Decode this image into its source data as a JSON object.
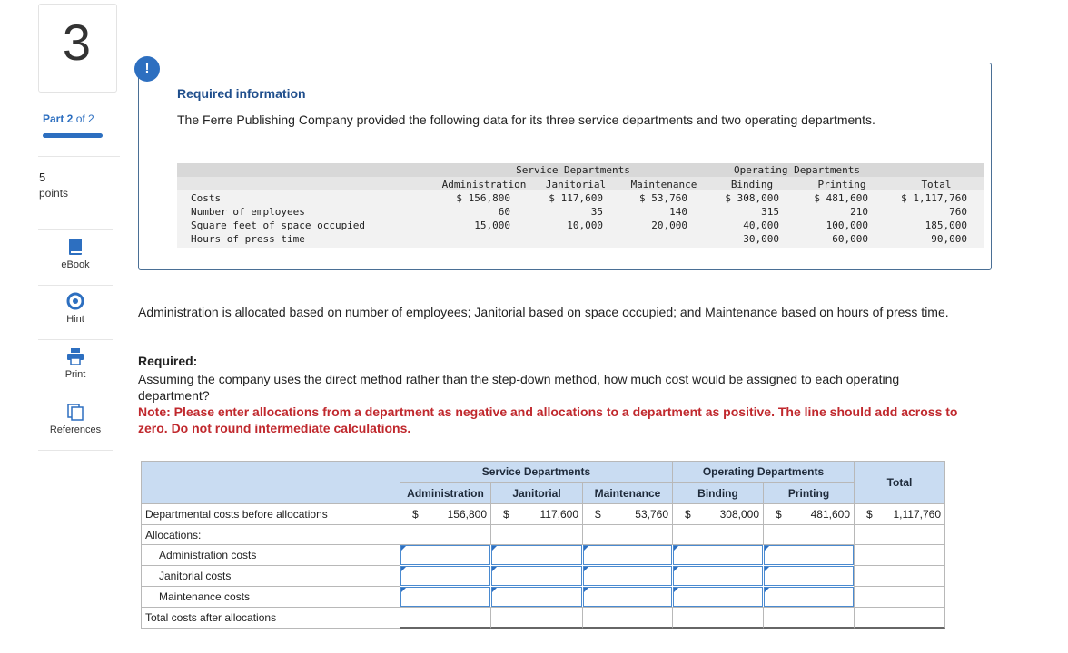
{
  "sidebar": {
    "question_number": "3",
    "part_label": "Part 2",
    "part_of": "of 2",
    "points_value": "5",
    "points_label": "points",
    "tools": [
      "eBook",
      "Hint",
      "Print",
      "References"
    ]
  },
  "info": {
    "badge": "!",
    "title": "Required information",
    "text": "The Ferre Publishing Company provided the following data for its three service departments and two operating departments.",
    "table": {
      "group_headers": [
        "Service Departments",
        "Operating Departments"
      ],
      "columns": [
        "Administration",
        "Janitorial",
        "Maintenance",
        "Binding",
        "Printing",
        "Total"
      ],
      "rows": [
        {
          "label": "Costs",
          "cells": [
            "$ 156,800",
            "$ 117,600",
            "$ 53,760",
            "$ 308,000",
            "$ 481,600",
            "$ 1,117,760"
          ]
        },
        {
          "label": "Number of employees",
          "cells": [
            "60",
            "35",
            "140",
            "315",
            "210",
            "760"
          ]
        },
        {
          "label": "Square feet of space occupied",
          "cells": [
            "15,000",
            "10,000",
            "20,000",
            "40,000",
            "100,000",
            "185,000"
          ]
        },
        {
          "label": "Hours of press time",
          "cells": [
            null,
            null,
            null,
            "30,000",
            "60,000",
            "90,000"
          ]
        }
      ]
    }
  },
  "body": {
    "allocation_text": "Administration is allocated based on number of employees; Janitorial based on space occupied; and Maintenance based on hours of press time.",
    "required_label": "Required:",
    "question": "Assuming the company uses the direct method rather than the step-down method, how much cost would be assigned to each operating department?",
    "note": "Note: Please enter allocations from a department as negative and allocations to a department as positive. The line should add across to zero. Do not round intermediate calculations."
  },
  "answer_table": {
    "group_headers": [
      "Service Departments",
      "Operating Departments",
      "Total"
    ],
    "columns": [
      "Administration",
      "Janitorial",
      "Maintenance",
      "Binding",
      "Printing"
    ],
    "currency": "$",
    "before_label": "Departmental costs before allocations",
    "before_values": [
      "156,800",
      "117,600",
      "53,760",
      "308,000",
      "481,600",
      "1,117,760"
    ],
    "allocations_label": "Allocations:",
    "allocation_rows": [
      "Administration costs",
      "Janitorial costs",
      "Maintenance costs"
    ],
    "total_label": "Total costs after allocations"
  }
}
